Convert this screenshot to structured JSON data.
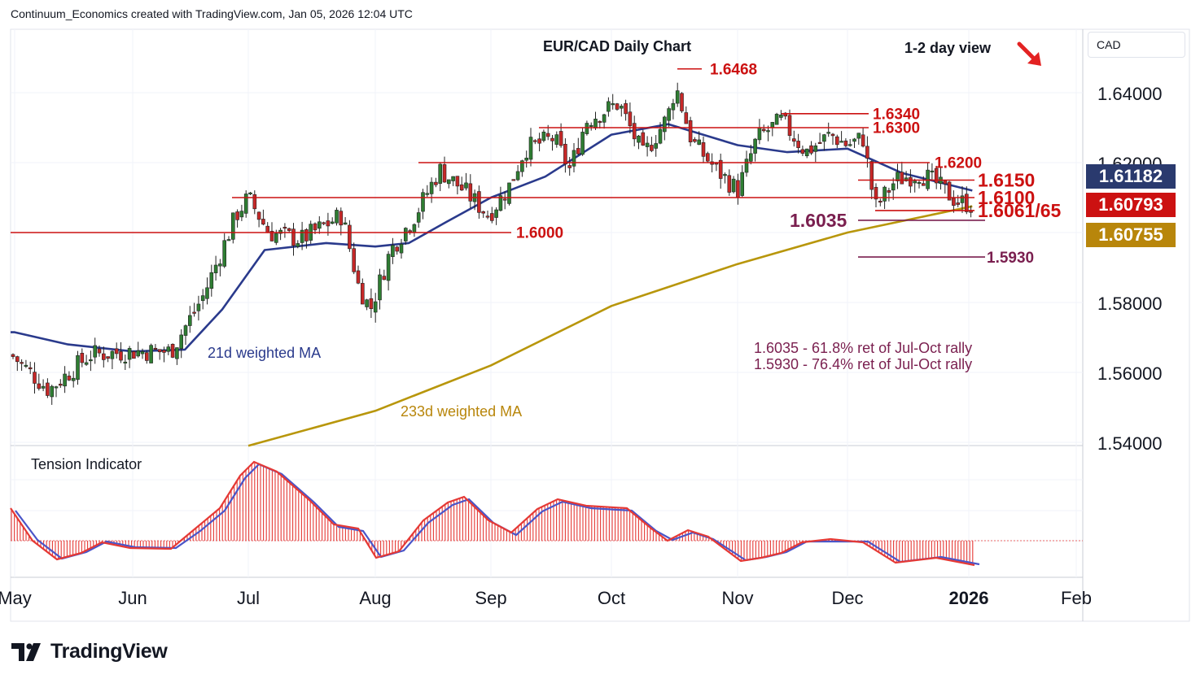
{
  "header": {
    "text": "Continuum_Economics created with TradingView.com, Jan 05, 2026 12:04 UTC"
  },
  "footer": {
    "brand": "TradingView"
  },
  "currency_label": "CAD",
  "price_tags": [
    {
      "label": "1.61182",
      "color": "#2a3a6e"
    },
    {
      "label": "1.60793",
      "color": "#cc1111"
    },
    {
      "label": "1.60755",
      "color": "#b8860b"
    }
  ],
  "chart_data": [
    {
      "type": "line",
      "title": "EUR/CAD Daily Chart",
      "subtitle": "1-2 day view",
      "view_arrow": "down-right red arrow",
      "ylabel": "CAD",
      "y_ticks": [
        "1.64000",
        "1.62000",
        "1.58000",
        "1.56000",
        "1.54000"
      ],
      "x_ticks": [
        "May",
        "Jun",
        "Jul",
        "Aug",
        "Sep",
        "Oct",
        "Nov",
        "Dec",
        "2026",
        "Feb"
      ],
      "ylim": [
        1.539,
        1.6505
      ],
      "grid": true,
      "series": [
        {
          "name": "21d weighted MA",
          "color": "#2a3a8c",
          "x": [
            "May 01",
            "May 15",
            "Jun 01",
            "Jun 15",
            "Jun 25",
            "Jul 05",
            "Jul 20",
            "Aug 01",
            "Aug 10",
            "Aug 20",
            "Sep 01",
            "Sep 15",
            "Oct 01",
            "Oct 15",
            "Nov 01",
            "Nov 15",
            "Dec 01",
            "Dec 15",
            "Jan 02"
          ],
          "values": [
            1.5715,
            1.568,
            1.566,
            1.5665,
            1.578,
            1.595,
            1.597,
            1.596,
            1.597,
            1.603,
            1.61,
            1.616,
            1.628,
            1.631,
            1.625,
            1.623,
            1.624,
            1.617,
            1.612
          ]
        },
        {
          "name": "233d weighted MA",
          "color": "#b8960b",
          "x": [
            "Jul 01",
            "Aug 01",
            "Sep 01",
            "Oct 01",
            "Nov 01",
            "Dec 01",
            "Jan 02"
          ],
          "values": [
            1.539,
            1.549,
            1.562,
            1.579,
            1.591,
            1.6,
            1.6075
          ]
        }
      ],
      "levels": [
        {
          "value": "1.6468",
          "color": "#cc1111"
        },
        {
          "value": "1.6340",
          "color": "#cc1111"
        },
        {
          "value": "1.6300",
          "color": "#cc1111"
        },
        {
          "value": "1.6200",
          "color": "#cc1111"
        },
        {
          "value": "1.6150",
          "color": "#cc1111"
        },
        {
          "value": "1.6100",
          "color": "#cc1111"
        },
        {
          "value": "1.6061/65",
          "color": "#cc1111"
        },
        {
          "value": "1.6035",
          "color": "#7a1f4f"
        },
        {
          "value": "1.6000",
          "color": "#cc1111"
        },
        {
          "value": "1.5930",
          "color": "#7a1f4f"
        }
      ],
      "candles_approx": {
        "x": [
          "May",
          "Jun",
          "Jul",
          "Aug",
          "Sep",
          "Oct",
          "Nov",
          "Dec",
          "Jan 02"
        ],
        "close": [
          1.565,
          1.566,
          1.598,
          1.596,
          1.612,
          1.63,
          1.62,
          1.614,
          1.6079
        ]
      },
      "annotations": [
        "21d weighted MA",
        "233d weighted MA",
        "1.6035 - 61.8% ret of Jul-Oct rally",
        "1.5930 - 76.4% ret of Jul-Oct rally"
      ],
      "up_color": "#2e7d32",
      "down_color": "#c62828"
    },
    {
      "type": "line",
      "title": "Tension Indicator",
      "series": [
        {
          "name": "",
          "color": "#e53935"
        },
        {
          "name": "",
          "color": "#4a55c8"
        }
      ],
      "histogram_color": "#e53935"
    }
  ]
}
